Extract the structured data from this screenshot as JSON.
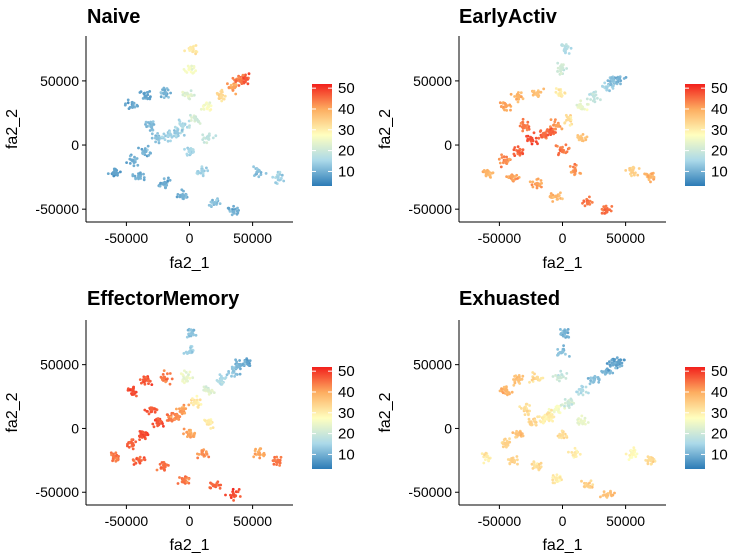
{
  "chart_data": [
    {
      "type": "scatter",
      "title": "Naive",
      "xlabel": "fa2_1",
      "ylabel": "fa2_2",
      "xlim": [
        -82000,
        82000
      ],
      "ylim": [
        -60000,
        85000
      ],
      "x_ticks": [
        "-50000",
        "0",
        "50000"
      ],
      "x_tick_values": [
        -50000,
        0,
        50000
      ],
      "y_ticks": [
        "-50000",
        "0",
        "50000"
      ],
      "y_tick_values": [
        -50000,
        0,
        50000
      ],
      "colorbar": {
        "ticks": [
          "50",
          "40",
          "30",
          "20",
          "10"
        ],
        "tick_values": [
          50,
          40,
          30,
          20,
          10
        ],
        "range": [
          3,
          52
        ],
        "palette": "RdYlBu reversed"
      },
      "pattern": "low (blue) across most of the embedding; high (red) at the upper-right end of the top branch",
      "points": [
        [
          -60000,
          -22000,
          8
        ],
        [
          -45000,
          -12000,
          9
        ],
        [
          -35000,
          -5000,
          10
        ],
        [
          -25000,
          5000,
          12
        ],
        [
          -15000,
          8000,
          14
        ],
        [
          -5000,
          15000,
          16
        ],
        [
          5000,
          20000,
          20
        ],
        [
          15000,
          30000,
          26
        ],
        [
          25000,
          38000,
          32
        ],
        [
          35000,
          45000,
          40
        ],
        [
          45000,
          52000,
          47
        ],
        [
          40000,
          50000,
          44
        ],
        [
          -30000,
          15000,
          11
        ],
        [
          -45000,
          30000,
          9
        ],
        [
          -35000,
          38000,
          8
        ],
        [
          -20000,
          40000,
          10
        ],
        [
          -10000,
          10000,
          13
        ],
        [
          0,
          -5000,
          15
        ],
        [
          10000,
          -20000,
          14
        ],
        [
          20000,
          -45000,
          12
        ],
        [
          35000,
          -52000,
          10
        ],
        [
          -20000,
          -30000,
          9
        ],
        [
          -5000,
          -40000,
          10
        ],
        [
          55000,
          -20000,
          12
        ],
        [
          70000,
          -25000,
          14
        ],
        [
          -2000,
          40000,
          22
        ],
        [
          0,
          60000,
          26
        ],
        [
          2000,
          75000,
          30
        ],
        [
          -40000,
          -25000,
          10
        ],
        [
          15000,
          5000,
          18
        ]
      ]
    },
    {
      "type": "scatter",
      "title": "EarlyActiv",
      "xlabel": "fa2_1",
      "ylabel": "fa2_2",
      "xlim": [
        -82000,
        82000
      ],
      "ylim": [
        -60000,
        85000
      ],
      "x_ticks": [
        "-50000",
        "0",
        "50000"
      ],
      "x_tick_values": [
        -50000,
        0,
        50000
      ],
      "y_ticks": [
        "-50000",
        "0",
        "50000"
      ],
      "y_tick_values": [
        -50000,
        0,
        50000
      ],
      "colorbar": {
        "ticks": [
          "50",
          "40",
          "30",
          "20",
          "10"
        ],
        "tick_values": [
          50,
          40,
          30,
          20,
          10
        ],
        "range": [
          3,
          52
        ],
        "palette": "RdYlBu reversed"
      },
      "pattern": "high (orange-red) across most of the embedding; lower (yellow-blue) on the upper-right branch",
      "points": [
        [
          -60000,
          -22000,
          38
        ],
        [
          -45000,
          -12000,
          42
        ],
        [
          -35000,
          -5000,
          46
        ],
        [
          -25000,
          5000,
          48
        ],
        [
          -15000,
          8000,
          45
        ],
        [
          -5000,
          15000,
          40
        ],
        [
          5000,
          20000,
          32
        ],
        [
          15000,
          30000,
          24
        ],
        [
          25000,
          38000,
          18
        ],
        [
          35000,
          45000,
          14
        ],
        [
          45000,
          52000,
          10
        ],
        [
          40000,
          50000,
          12
        ],
        [
          -30000,
          15000,
          44
        ],
        [
          -45000,
          30000,
          40
        ],
        [
          -35000,
          38000,
          38
        ],
        [
          -20000,
          40000,
          36
        ],
        [
          -10000,
          10000,
          46
        ],
        [
          0,
          -5000,
          44
        ],
        [
          10000,
          -20000,
          42
        ],
        [
          20000,
          -45000,
          44
        ],
        [
          35000,
          -52000,
          45
        ],
        [
          -20000,
          -30000,
          40
        ],
        [
          -5000,
          -40000,
          38
        ],
        [
          55000,
          -20000,
          34
        ],
        [
          70000,
          -25000,
          38
        ],
        [
          -2000,
          40000,
          30
        ],
        [
          0,
          60000,
          20
        ],
        [
          2000,
          75000,
          16
        ],
        [
          -40000,
          -25000,
          40
        ],
        [
          15000,
          5000,
          36
        ]
      ]
    },
    {
      "type": "scatter",
      "title": "EffectorMemory",
      "xlabel": "fa2_1",
      "ylabel": "fa2_2",
      "xlim": [
        -82000,
        82000
      ],
      "ylim": [
        -60000,
        85000
      ],
      "x_ticks": [
        "-50000",
        "0",
        "50000"
      ],
      "x_tick_values": [
        -50000,
        0,
        50000
      ],
      "y_ticks": [
        "-50000",
        "0",
        "50000"
      ],
      "y_tick_values": [
        -50000,
        0,
        50000
      ],
      "colorbar": {
        "ticks": [
          "50",
          "40",
          "30",
          "20",
          "10"
        ],
        "tick_values": [
          50,
          40,
          30,
          20,
          10
        ],
        "range": [
          3,
          52
        ],
        "palette": "RdYlBu reversed"
      },
      "pattern": "high (red) over the left and lower regions; low (blue) on the upper-right branch and top",
      "points": [
        [
          -60000,
          -22000,
          44
        ],
        [
          -45000,
          -12000,
          46
        ],
        [
          -35000,
          -5000,
          48
        ],
        [
          -25000,
          5000,
          47
        ],
        [
          -15000,
          8000,
          44
        ],
        [
          -5000,
          15000,
          40
        ],
        [
          5000,
          20000,
          30
        ],
        [
          15000,
          30000,
          22
        ],
        [
          25000,
          38000,
          16
        ],
        [
          35000,
          45000,
          12
        ],
        [
          45000,
          52000,
          8
        ],
        [
          40000,
          50000,
          10
        ],
        [
          -30000,
          15000,
          46
        ],
        [
          -45000,
          30000,
          48
        ],
        [
          -35000,
          38000,
          47
        ],
        [
          -20000,
          40000,
          44
        ],
        [
          -10000,
          10000,
          42
        ],
        [
          0,
          -5000,
          40
        ],
        [
          10000,
          -20000,
          42
        ],
        [
          20000,
          -45000,
          46
        ],
        [
          35000,
          -52000,
          48
        ],
        [
          -20000,
          -30000,
          45
        ],
        [
          -5000,
          -40000,
          44
        ],
        [
          55000,
          -20000,
          40
        ],
        [
          70000,
          -25000,
          44
        ],
        [
          -2000,
          40000,
          24
        ],
        [
          0,
          60000,
          14
        ],
        [
          2000,
          75000,
          12
        ],
        [
          -40000,
          -25000,
          46
        ],
        [
          15000,
          5000,
          30
        ]
      ]
    },
    {
      "type": "scatter",
      "title": "Exhuasted",
      "xlabel": "fa2_1",
      "ylabel": "fa2_2",
      "xlim": [
        -82000,
        82000
      ],
      "ylim": [
        -60000,
        85000
      ],
      "x_ticks": [
        "-50000",
        "0",
        "50000"
      ],
      "x_tick_values": [
        -50000,
        0,
        50000
      ],
      "y_ticks": [
        "-50000",
        "0",
        "50000"
      ],
      "y_tick_values": [
        -50000,
        0,
        50000
      ],
      "colorbar": {
        "ticks": [
          "50",
          "40",
          "30",
          "20",
          "10"
        ],
        "tick_values": [
          50,
          40,
          30,
          20,
          10
        ],
        "range": [
          3,
          52
        ],
        "palette": "RdYlBu reversed"
      },
      "pattern": "moderate (yellow-orange) across the embedding; low (blue) on the upper-right branch and top",
      "points": [
        [
          -60000,
          -22000,
          30
        ],
        [
          -45000,
          -12000,
          34
        ],
        [
          -35000,
          -5000,
          36
        ],
        [
          -25000,
          5000,
          34
        ],
        [
          -15000,
          8000,
          30
        ],
        [
          -5000,
          15000,
          26
        ],
        [
          5000,
          20000,
          20
        ],
        [
          15000,
          30000,
          16
        ],
        [
          25000,
          38000,
          12
        ],
        [
          35000,
          45000,
          10
        ],
        [
          45000,
          52000,
          8
        ],
        [
          40000,
          50000,
          9
        ],
        [
          -30000,
          15000,
          32
        ],
        [
          -45000,
          30000,
          38
        ],
        [
          -35000,
          38000,
          36
        ],
        [
          -20000,
          40000,
          32
        ],
        [
          -10000,
          10000,
          30
        ],
        [
          0,
          -5000,
          32
        ],
        [
          10000,
          -20000,
          30
        ],
        [
          20000,
          -45000,
          34
        ],
        [
          35000,
          -52000,
          36
        ],
        [
          -20000,
          -30000,
          32
        ],
        [
          -5000,
          -40000,
          30
        ],
        [
          55000,
          -20000,
          28
        ],
        [
          70000,
          -25000,
          32
        ],
        [
          -2000,
          40000,
          20
        ],
        [
          0,
          60000,
          12
        ],
        [
          2000,
          75000,
          10
        ],
        [
          -40000,
          -25000,
          34
        ],
        [
          15000,
          5000,
          24
        ]
      ]
    }
  ]
}
